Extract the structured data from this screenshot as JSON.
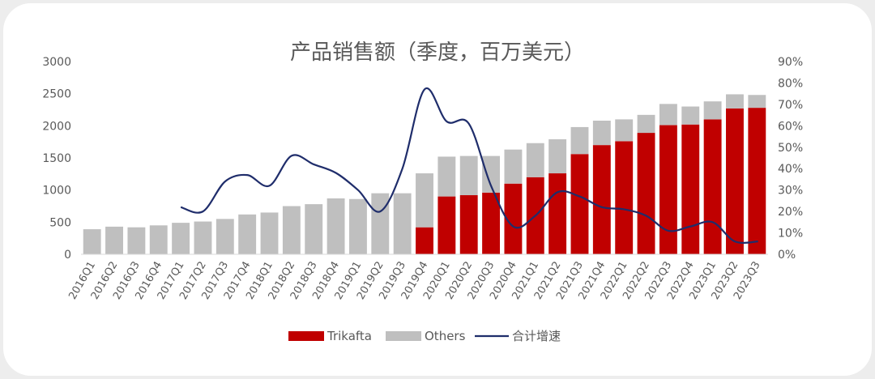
{
  "chart_data": {
    "type": "bar",
    "title": "产品销售额（季度，百万美元）",
    "categories": [
      "2016Q1",
      "2016Q2",
      "2016Q3",
      "2016Q4",
      "2017Q1",
      "2017Q2",
      "2017Q3",
      "2017Q4",
      "2018Q1",
      "2018Q2",
      "2018Q3",
      "2018Q4",
      "2019Q1",
      "2019Q2",
      "2019Q3",
      "2019Q4",
      "2020Q1",
      "2020Q2",
      "2020Q3",
      "2020Q4",
      "2021Q1",
      "2021Q2",
      "2021Q3",
      "2021Q4",
      "2022Q1",
      "2022Q2",
      "2022Q3",
      "2022Q4",
      "2023Q1",
      "2023Q2",
      "2023Q3"
    ],
    "series": [
      {
        "name": "Trikafta",
        "kind": "stacked-bar",
        "axis": "left",
        "values": [
          0,
          0,
          0,
          0,
          0,
          0,
          0,
          0,
          0,
          0,
          0,
          0,
          0,
          0,
          0,
          420,
          900,
          920,
          960,
          1100,
          1200,
          1260,
          1560,
          1700,
          1760,
          1890,
          2010,
          2020,
          2100,
          2270,
          2280
        ]
      },
      {
        "name": "Others",
        "kind": "stacked-bar",
        "axis": "left",
        "values": [
          390,
          430,
          420,
          450,
          490,
          510,
          550,
          620,
          650,
          750,
          780,
          870,
          860,
          950,
          950,
          840,
          620,
          610,
          570,
          530,
          530,
          530,
          420,
          380,
          340,
          280,
          330,
          280,
          280,
          220,
          200
        ]
      },
      {
        "name": "合计增速",
        "kind": "line",
        "axis": "right",
        "values": [
          null,
          null,
          null,
          null,
          22,
          20,
          34,
          37,
          32,
          46,
          42,
          38,
          30,
          20,
          40,
          77,
          62,
          61,
          32,
          13,
          18,
          29,
          27,
          22,
          21,
          18,
          11,
          13,
          15,
          6,
          null
        ],
        "values_note": "percent; last point sits between 2023Q2 and 2023Q3"
      }
    ],
    "y_left": {
      "min": 0,
      "max": 3000,
      "ticks": [
        "0",
        "500",
        "1000",
        "1500",
        "2000",
        "2500",
        "3000"
      ]
    },
    "y_right": {
      "min": 0,
      "max": 90,
      "ticks": [
        "0%",
        "10%",
        "20%",
        "30%",
        "40%",
        "50%",
        "60%",
        "70%",
        "80%",
        "90%"
      ]
    },
    "legend_position": "bottom",
    "grid": false
  },
  "colors": {
    "trikafta": "#c00000",
    "others": "#bfbfbf",
    "growth_line": "#1f2d6b",
    "axis": "#d9d9d9",
    "text": "#595959",
    "background": "#ededed",
    "card": "#ffffff"
  }
}
